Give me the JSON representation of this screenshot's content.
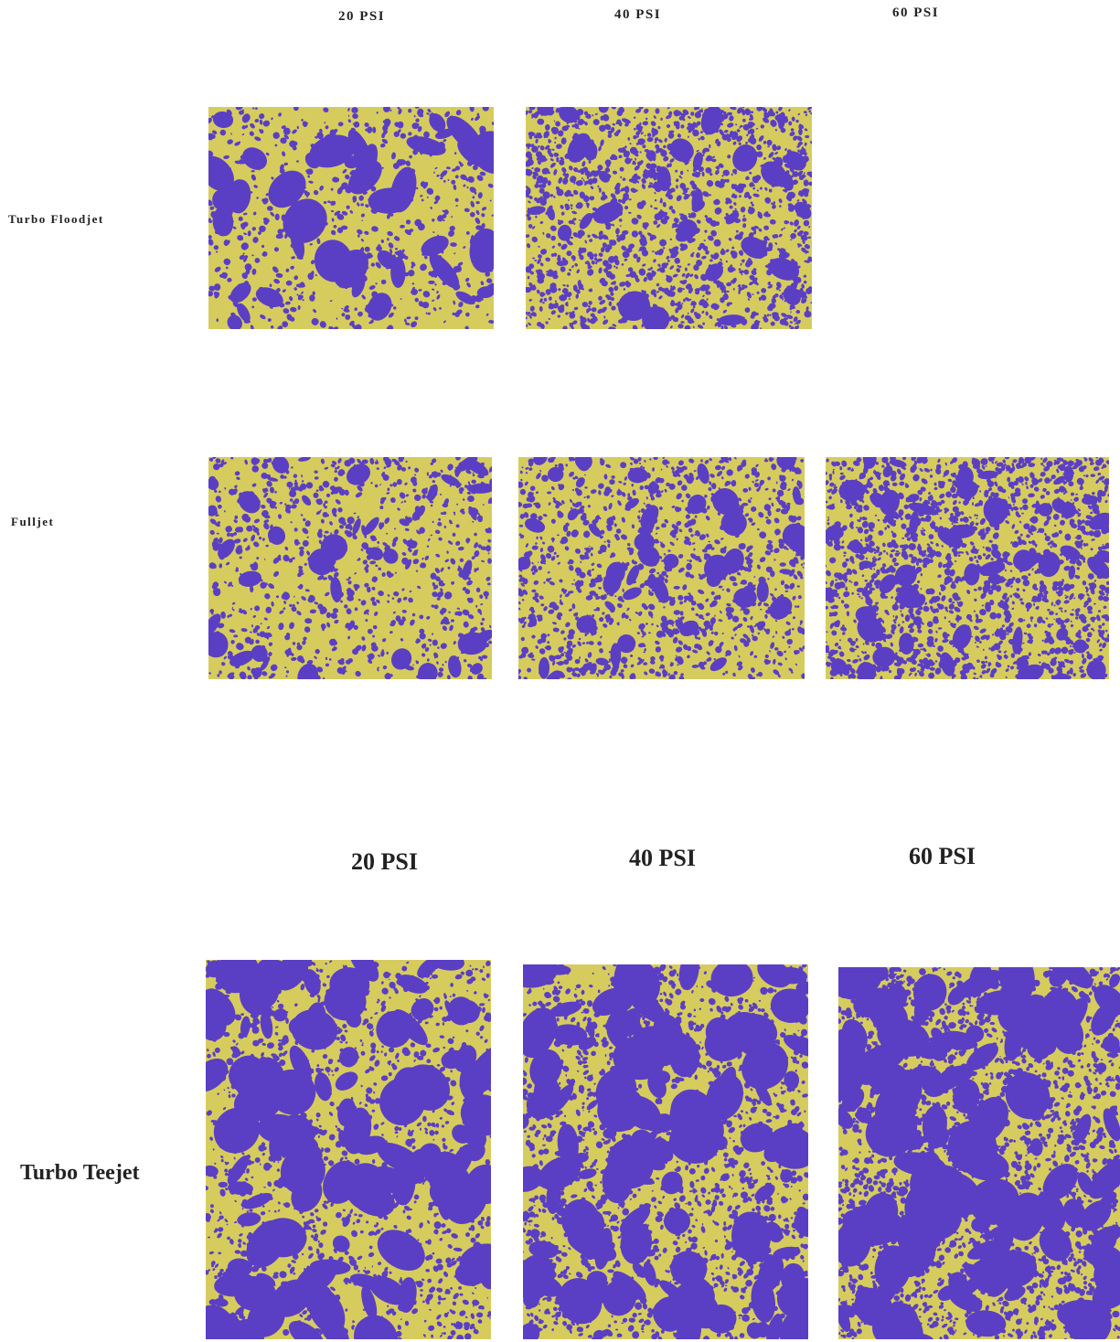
{
  "header_top": {
    "columns": [
      "20 PSI",
      "40 PSI",
      "60 PSI"
    ]
  },
  "rows_top": [
    {
      "label": "Turbo Floodjet"
    },
    {
      "label": "Fulljet"
    }
  ],
  "header_bottom": {
    "columns": [
      "20 PSI",
      "40 PSI",
      "60 PSI"
    ]
  },
  "rows_bottom": [
    {
      "label": "Turbo Teejet"
    }
  ]
}
